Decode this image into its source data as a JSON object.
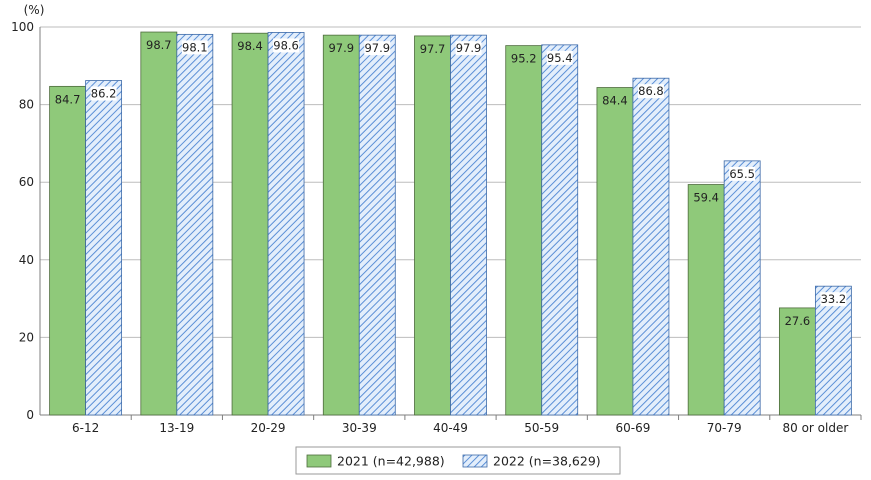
{
  "chart_data": {
    "type": "bar",
    "ylabel": "(%)",
    "ylim": [
      0,
      100
    ],
    "yticks": [
      0,
      20,
      40,
      60,
      80,
      100
    ],
    "grid": true,
    "legend_position": "bottom",
    "categories": [
      "6-12",
      "13-19",
      "20-29",
      "30-39",
      "40-49",
      "50-59",
      "60-69",
      "70-79",
      "80 or older"
    ],
    "series": [
      {
        "name": "2021  (n=42,988)",
        "values": [
          84.7,
          98.7,
          98.4,
          97.9,
          97.7,
          95.2,
          84.4,
          59.4,
          27.6
        ],
        "labels": [
          "84.7",
          "98.7",
          "98.4",
          "97.9",
          "97.7",
          "95.2",
          "84.4",
          "59.4",
          "27.6"
        ],
        "color": "#8fc97a",
        "pattern": "solid"
      },
      {
        "name": "2022  (n=38,629)",
        "values": [
          86.2,
          98.1,
          98.6,
          97.9,
          97.9,
          95.4,
          86.8,
          65.5,
          33.2
        ],
        "labels": [
          "86.2",
          "98.1",
          "98.6",
          "97.9",
          "97.9",
          "95.4",
          "86.8",
          "65.5",
          "33.2"
        ],
        "color": "#5b8fd6",
        "pattern": "diagonal-hatch"
      }
    ]
  }
}
